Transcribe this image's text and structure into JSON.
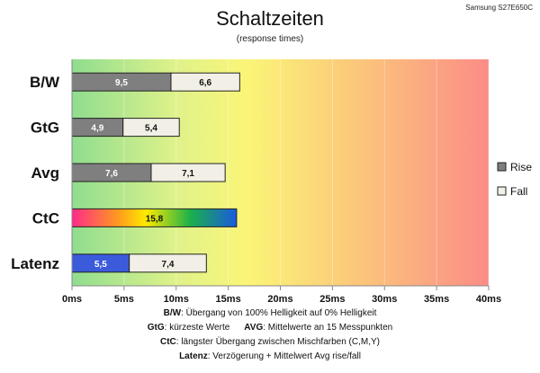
{
  "chart_data": {
    "type": "bar",
    "orientation": "horizontal",
    "stacked": true,
    "title": "Schaltzeiten",
    "subtitle": "(response times)",
    "model": "Samsung S27E650C",
    "categories": [
      "B/W",
      "GtG",
      "Avg",
      "CtC",
      "Latenz"
    ],
    "series": [
      {
        "name": "Rise",
        "values": [
          9.5,
          4.9,
          7.6,
          15.8,
          5.5
        ],
        "labels": [
          "9,5",
          "4,9",
          "7,6",
          "15,8",
          "5,5"
        ]
      },
      {
        "name": "Fall",
        "values": [
          6.6,
          5.4,
          7.1,
          null,
          7.4
        ],
        "labels": [
          "6,6",
          "5,4",
          "7,1",
          "",
          "7,4"
        ]
      }
    ],
    "xticks": [
      "0ms",
      "5ms",
      "10ms",
      "15ms",
      "20ms",
      "25ms",
      "30ms",
      "35ms",
      "40ms"
    ],
    "xlim": [
      0,
      40
    ],
    "legend": "right",
    "colors": {
      "rise": "#7f7f7f",
      "fall": "#f2f0e6",
      "latenz_rise": "#3b5bdb",
      "background_gradient": [
        "#8ddd8d",
        "#e8f48a",
        "#fbf577",
        "#fbc97a",
        "#fb8f84"
      ]
    }
  },
  "notes": {
    "line1": {
      "key": "B/W",
      "text": ":  Übergang von 100% Helligkeit auf 0% Helligkeit"
    },
    "line2": {
      "key": "GtG",
      "text": ": kürzeste  Werte",
      "key2": "AVG",
      "text2": ": Mittelwerte  an 15 Messpunkten"
    },
    "line3": {
      "key": "CtC",
      "text": ": längster Übergang  zwischen Mischfarben  (C,M,Y)"
    },
    "line4": {
      "key": "Latenz",
      "text": ": Verzögerung  + Mittelwert  Avg rise/fall"
    }
  }
}
